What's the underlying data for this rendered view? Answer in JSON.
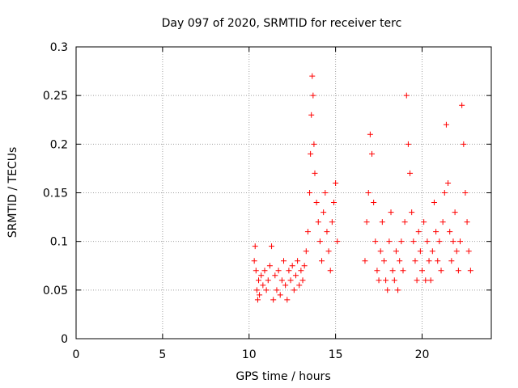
{
  "chart_data": {
    "type": "scatter",
    "title": "Day 097 of 2020, SRMTID for receiver terc",
    "xlabel": "GPS time / hours",
    "ylabel": "SRMTID / TECUs",
    "xlim": [
      0,
      24
    ],
    "ylim": [
      0,
      0.3
    ],
    "xticks": [
      0,
      5,
      10,
      15,
      20
    ],
    "xtick_labels": [
      "0",
      "5",
      "10",
      "15",
      "20"
    ],
    "yticks": [
      0,
      0.05,
      0.1,
      0.15,
      0.2,
      0.25,
      0.3
    ],
    "ytick_labels": [
      "0",
      "0.05",
      "0.1",
      "0.15",
      "0.2",
      "0.25",
      "0.3"
    ],
    "grid": true,
    "marker": "plus",
    "color": "#ff0000",
    "series": [
      {
        "name": "SRMTID",
        "x": [
          10.3,
          10.35,
          10.4,
          10.45,
          10.5,
          10.55,
          10.6,
          10.7,
          10.8,
          10.9,
          11.0,
          11.1,
          11.2,
          11.3,
          11.4,
          11.5,
          11.6,
          11.7,
          11.8,
          11.9,
          12.0,
          12.1,
          12.2,
          12.3,
          12.4,
          12.5,
          12.6,
          12.7,
          12.8,
          12.9,
          13.0,
          13.1,
          13.2,
          13.3,
          13.4,
          13.5,
          13.55,
          13.6,
          13.65,
          13.7,
          13.75,
          13.8,
          13.9,
          14.0,
          14.1,
          14.2,
          14.3,
          14.4,
          14.5,
          14.6,
          14.7,
          14.8,
          14.9,
          15.0,
          15.1,
          16.7,
          16.8,
          16.9,
          17.0,
          17.1,
          17.2,
          17.3,
          17.4,
          17.5,
          17.6,
          17.7,
          17.8,
          17.9,
          18.0,
          18.1,
          18.2,
          18.3,
          18.4,
          18.5,
          18.6,
          18.7,
          18.8,
          18.9,
          19.0,
          19.1,
          19.2,
          19.3,
          19.4,
          19.5,
          19.6,
          19.7,
          19.8,
          19.9,
          20.0,
          20.1,
          20.2,
          20.3,
          20.4,
          20.5,
          20.6,
          20.7,
          20.8,
          20.9,
          21.0,
          21.1,
          21.2,
          21.3,
          21.4,
          21.5,
          21.6,
          21.7,
          21.8,
          21.9,
          22.0,
          22.1,
          22.2,
          22.3,
          22.4,
          22.5,
          22.6,
          22.7,
          22.8
        ],
        "y": [
          0.08,
          0.095,
          0.07,
          0.05,
          0.04,
          0.06,
          0.045,
          0.065,
          0.055,
          0.07,
          0.05,
          0.06,
          0.075,
          0.095,
          0.04,
          0.065,
          0.05,
          0.07,
          0.045,
          0.06,
          0.08,
          0.055,
          0.04,
          0.07,
          0.06,
          0.075,
          0.05,
          0.065,
          0.08,
          0.055,
          0.07,
          0.06,
          0.075,
          0.09,
          0.11,
          0.15,
          0.19,
          0.23,
          0.27,
          0.25,
          0.2,
          0.17,
          0.14,
          0.12,
          0.1,
          0.08,
          0.13,
          0.15,
          0.11,
          0.09,
          0.07,
          0.12,
          0.14,
          0.16,
          0.1,
          0.08,
          0.12,
          0.15,
          0.21,
          0.19,
          0.14,
          0.1,
          0.07,
          0.06,
          0.09,
          0.12,
          0.08,
          0.06,
          0.05,
          0.1,
          0.13,
          0.07,
          0.06,
          0.09,
          0.05,
          0.08,
          0.1,
          0.07,
          0.12,
          0.25,
          0.2,
          0.17,
          0.13,
          0.1,
          0.08,
          0.06,
          0.11,
          0.09,
          0.07,
          0.12,
          0.06,
          0.1,
          0.08,
          0.06,
          0.09,
          0.14,
          0.11,
          0.08,
          0.1,
          0.07,
          0.12,
          0.15,
          0.22,
          0.16,
          0.11,
          0.08,
          0.1,
          0.13,
          0.09,
          0.07,
          0.1,
          0.24,
          0.2,
          0.15,
          0.12,
          0.09,
          0.07
        ]
      }
    ]
  }
}
